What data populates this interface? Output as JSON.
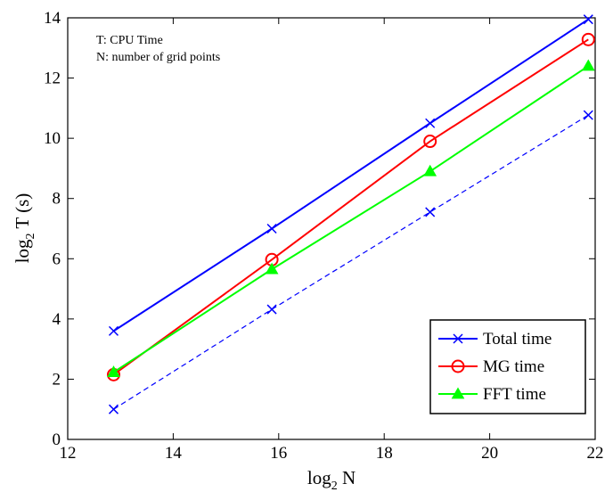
{
  "chart_data": {
    "type": "line",
    "xlabel": {
      "base": "log",
      "sub": "2",
      "rest": " N"
    },
    "ylabel": {
      "base": "log",
      "sub": "2",
      "rest": " T  (s)"
    },
    "xlim": [
      12,
      22
    ],
    "ylim": [
      0,
      14
    ],
    "xticks": [
      12,
      14,
      16,
      18,
      20,
      22
    ],
    "yticks": [
      0,
      2,
      4,
      6,
      8,
      10,
      12,
      14
    ],
    "grid": false,
    "legend_position": "bottom-right",
    "annotations": [
      "T: CPU Time",
      "N: number of grid points"
    ],
    "x": [
      12.87,
      15.87,
      18.87,
      21.87
    ],
    "series": [
      {
        "name": "Total time",
        "color": "#0000ff",
        "marker": "x",
        "dash": "solid",
        "values": [
          3.6,
          7.0,
          10.5,
          13.95
        ],
        "legend": true
      },
      {
        "name": "MG time",
        "color": "#ff0000",
        "marker": "circle",
        "dash": "solid",
        "values": [
          2.15,
          5.97,
          9.9,
          13.28
        ],
        "legend": true
      },
      {
        "name": "FFT time",
        "color": "#00ff00",
        "marker": "triangle",
        "dash": "solid",
        "values": [
          2.23,
          5.65,
          8.9,
          12.4
        ],
        "legend": true
      },
      {
        "name": "",
        "color": "#0000ff",
        "marker": "x",
        "dash": "dashed",
        "values": [
          1.0,
          4.32,
          7.55,
          10.77
        ],
        "legend": false
      }
    ]
  }
}
